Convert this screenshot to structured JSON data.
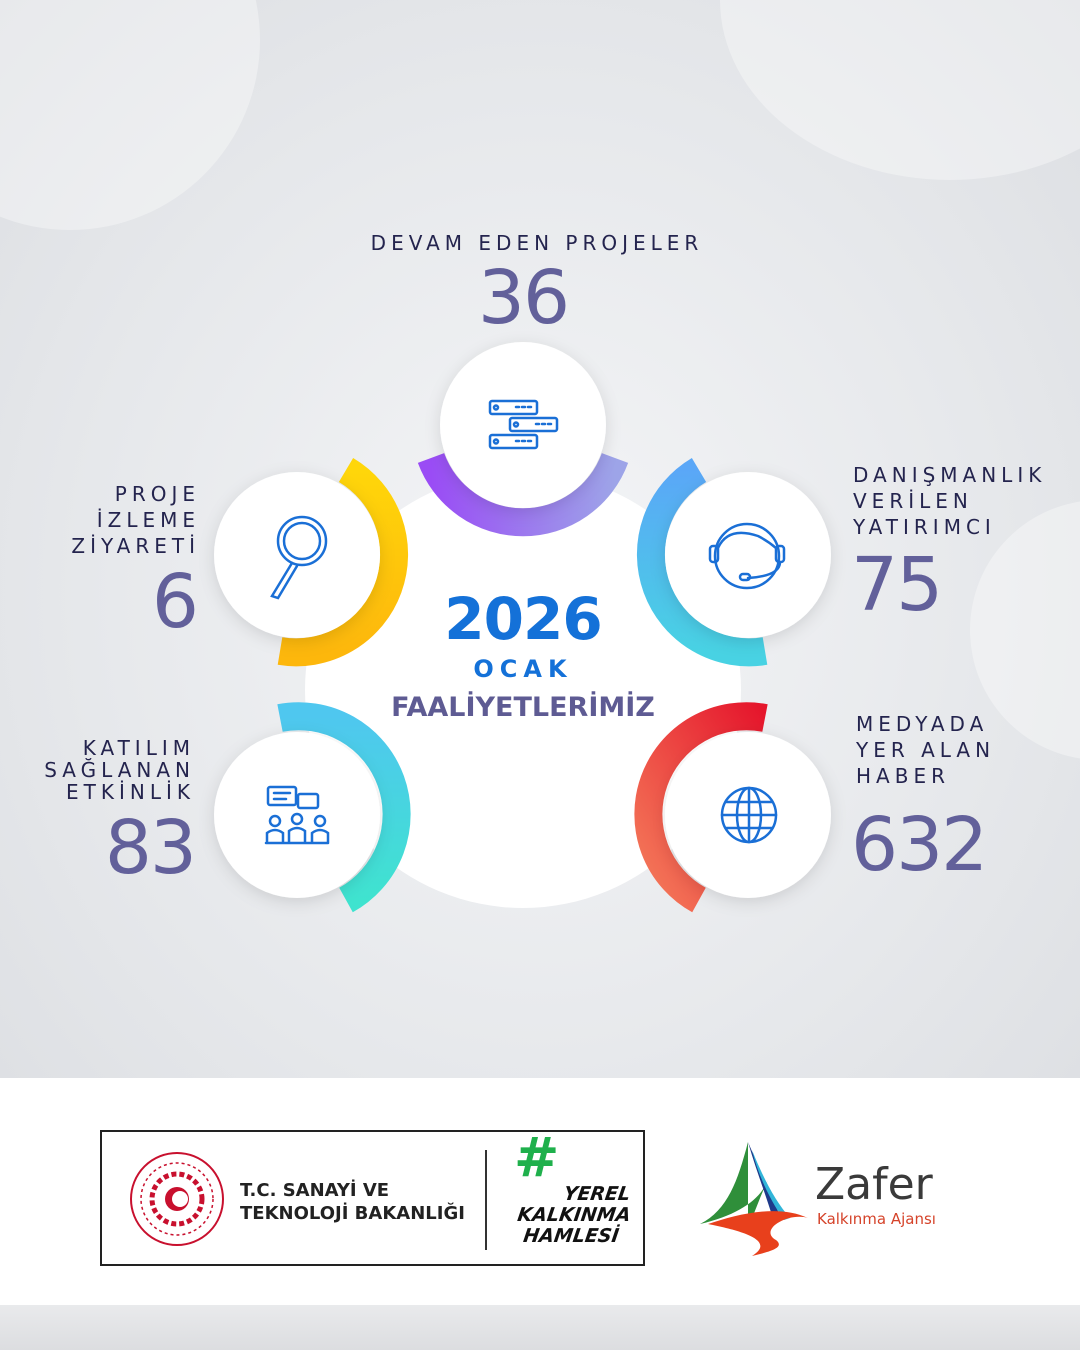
{
  "header": {
    "year": "2026",
    "month": "OCAK",
    "title": "FAALİYETLERİMİZ"
  },
  "stats": [
    {
      "id": "projects",
      "label_lines": [
        "DEVAM EDEN PROJELER"
      ],
      "value": "36",
      "icon": "server-icon",
      "color": "#8b5cf6"
    },
    {
      "id": "monitoring",
      "label_lines": [
        "PROJE",
        "İZLEME",
        "ZİYARETİ"
      ],
      "value": "6",
      "icon": "magnifier-icon",
      "color": "#fcc419"
    },
    {
      "id": "consulting",
      "label_lines": [
        "DANIŞMANLIK",
        "VERİLEN",
        "YATIRIMCI"
      ],
      "value": "75",
      "icon": "headset-agent-icon",
      "color": "#4dabf7"
    },
    {
      "id": "events",
      "label_lines": [
        "KATILIM",
        "SAĞLANAN",
        "ETKİNLİK"
      ],
      "value": "83",
      "icon": "meeting-icon",
      "color": "#3bd9c8"
    },
    {
      "id": "media",
      "label_lines": [
        "MEDYADA",
        "YER ALAN",
        "HABER"
      ],
      "value": "632",
      "icon": "globe-icon",
      "color": "#e8352f"
    }
  ],
  "footer": {
    "ministry_line1": "T.C. SANAYİ VE",
    "ministry_line2": "TEKNOLOJİ BAKANLIĞI",
    "campaign_hash": "#",
    "campaign_lines": [
      "YEREL",
      "KALKINMA",
      "HAMLESİ"
    ],
    "agency_name": "Zafer",
    "agency_sub": "Kalkınma Ajansı"
  },
  "colors": {
    "number": "#62609a",
    "label": "#24244e",
    "accent": "#1471d8"
  }
}
